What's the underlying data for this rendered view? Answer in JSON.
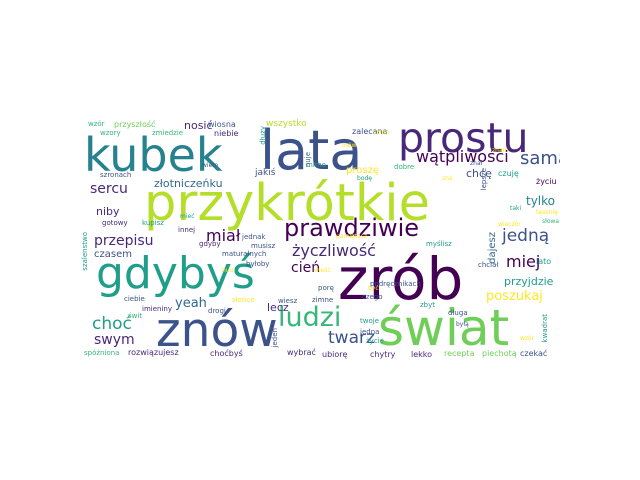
{
  "palette": {
    "navy": "#3b528b",
    "purple": "#440154",
    "deep_purple": "#482878",
    "blue": "#31688e",
    "teal": "#26828e",
    "cyan": "#1f9e89",
    "green": "#35b779",
    "lime": "#6ece58",
    "yellow_green": "#b5de2b",
    "yellow": "#fde725"
  },
  "words": [
    {
      "text": "przykrótkie",
      "color": "yellow_green"
    },
    {
      "text": "zrób",
      "color": "purple"
    },
    {
      "text": "lata",
      "color": "navy"
    },
    {
      "text": "kubek",
      "color": "teal"
    },
    {
      "text": "gdybyś",
      "color": "cyan"
    },
    {
      "text": "świat",
      "color": "lime"
    },
    {
      "text": "znów",
      "color": "navy"
    },
    {
      "text": "prostu",
      "color": "deep_purple"
    },
    {
      "text": "ludzi",
      "color": "green"
    },
    {
      "text": "prawdziwie",
      "color": "purple"
    },
    {
      "text": "twarz",
      "color": "navy"
    },
    {
      "text": "wątpliwości",
      "color": "purple"
    },
    {
      "text": "samą",
      "color": "navy"
    },
    {
      "text": "życzliwość",
      "color": "deep_purple"
    },
    {
      "text": "jedną",
      "color": "navy"
    },
    {
      "text": "miał",
      "color": "purple"
    },
    {
      "text": "choć",
      "color": "cyan"
    },
    {
      "text": "sercu",
      "color": "deep_purple"
    },
    {
      "text": "miej",
      "color": "purple"
    },
    {
      "text": "przepisu",
      "color": "deep_purple"
    },
    {
      "text": "cień",
      "color": "purple"
    },
    {
      "text": "swym",
      "color": "deep_purple"
    },
    {
      "text": "poszukaj",
      "color": "yellow"
    },
    {
      "text": "yeah",
      "color": "blue"
    },
    {
      "text": "tylko",
      "color": "teal"
    },
    {
      "text": "przyjdzie",
      "color": "cyan"
    },
    {
      "text": "złotniczeńku",
      "color": "blue"
    },
    {
      "text": "niby",
      "color": "deep_purple"
    },
    {
      "text": "nosić",
      "color": "deep_purple"
    },
    {
      "text": "wszystko",
      "color": "yellow_green"
    },
    {
      "text": "chcę",
      "color": "navy"
    },
    {
      "text": "lecz",
      "color": "deep_purple"
    },
    {
      "text": "dajesz",
      "color": "blue"
    },
    {
      "text": "czasem",
      "color": "navy"
    },
    {
      "text": "proszę",
      "color": "yellow"
    },
    {
      "text": "jakiś",
      "color": "navy"
    },
    {
      "text": "wiosna",
      "color": "navy"
    },
    {
      "text": "niebie",
      "color": "deep_purple"
    },
    {
      "text": "przyszłość",
      "color": "lime"
    },
    {
      "text": "wzór",
      "color": "green"
    },
    {
      "text": "wzory",
      "color": "green"
    },
    {
      "text": "zmiedzie",
      "color": "green"
    },
    {
      "text": "szronach",
      "color": "navy"
    },
    {
      "text": "zalecana",
      "color": "navy"
    },
    {
      "text": "dobre",
      "color": "green"
    },
    {
      "text": "czuję",
      "color": "cyan"
    },
    {
      "text": "życiu",
      "color": "purple"
    },
    {
      "text": "gotowy",
      "color": "deep_purple"
    },
    {
      "text": "kupisz",
      "color": "cyan"
    },
    {
      "text": "innej",
      "color": "deep_purple"
    },
    {
      "text": "gdyby",
      "color": "deep_purple"
    },
    {
      "text": "maturalnych",
      "color": "navy"
    },
    {
      "text": "jednak",
      "color": "navy"
    },
    {
      "text": "musisz",
      "color": "navy"
    },
    {
      "text": "byłoby",
      "color": "navy"
    },
    {
      "text": "myślisz",
      "color": "cyan"
    },
    {
      "text": "chciał",
      "color": "navy"
    },
    {
      "text": "lato",
      "color": "cyan"
    },
    {
      "text": "słowa",
      "color": "green"
    },
    {
      "text": "świt",
      "color": "green"
    },
    {
      "text": "drogi",
      "color": "navy"
    },
    {
      "text": "ciebie",
      "color": "navy"
    },
    {
      "text": "imieniny",
      "color": "deep_purple"
    },
    {
      "text": "słońce",
      "color": "yellow"
    },
    {
      "text": "wiesz",
      "color": "navy"
    },
    {
      "text": "zimne",
      "color": "navy"
    },
    {
      "text": "porę",
      "color": "navy"
    },
    {
      "text": "twoje",
      "color": "cyan"
    },
    {
      "text": "czego",
      "color": "navy"
    },
    {
      "text": "podręcznikach",
      "color": "navy"
    },
    {
      "text": "jedna",
      "color": "navy"
    },
    {
      "text": "życie",
      "color": "cyan"
    },
    {
      "text": "zbyt",
      "color": "cyan"
    },
    {
      "text": "spóźniona",
      "color": "green"
    },
    {
      "text": "rozwiązujesz",
      "color": "deep_purple"
    },
    {
      "text": "choćbyś",
      "color": "deep_purple"
    },
    {
      "text": "wybrać",
      "color": "deep_purple"
    },
    {
      "text": "ubiorę",
      "color": "deep_purple"
    },
    {
      "text": "chytry",
      "color": "deep_purple"
    },
    {
      "text": "lekko",
      "color": "deep_purple"
    },
    {
      "text": "recepta",
      "color": "lime"
    },
    {
      "text": "piechotą",
      "color": "lime"
    },
    {
      "text": "czekać",
      "color": "navy"
    },
    {
      "text": "kwadrat",
      "color": "cyan"
    },
    {
      "text": "szalenstwo",
      "color": "cyan"
    },
    {
      "text": "jeden",
      "color": "navy"
    },
    {
      "text": "długa",
      "color": "navy"
    },
    {
      "text": "dłuży",
      "color": "cyan"
    },
    {
      "text": "mimo",
      "color": "cyan"
    },
    {
      "text": "nuje",
      "color": "blue"
    },
    {
      "text": "lepsze",
      "color": "navy"
    },
    {
      "text": "znał",
      "color": "navy"
    },
    {
      "text": "wieczór",
      "color": "yellow"
    },
    {
      "text": "być",
      "color": "yellow"
    },
    {
      "text": "wiem",
      "color": "navy"
    },
    {
      "text": "huu",
      "color": "yellow"
    },
    {
      "text": "bodę",
      "color": "cyan"
    },
    {
      "text": "szron",
      "color": "yellow"
    },
    {
      "text": "tęsknię",
      "color": "yellow"
    },
    {
      "text": "pamiętasz",
      "color": "yellow"
    },
    {
      "text": "byłą",
      "color": "navy"
    },
    {
      "text": "znam",
      "color": "yellow"
    },
    {
      "text": "taki",
      "color": "cyan"
    },
    {
      "text": "wieść",
      "color": "yellow"
    },
    {
      "text": "zna",
      "color": "yellow"
    },
    {
      "text": "mieć",
      "color": "cyan"
    },
    {
      "text": "mów",
      "color": "yellow"
    },
    {
      "text": "wzór",
      "color": "yellow"
    }
  ]
}
